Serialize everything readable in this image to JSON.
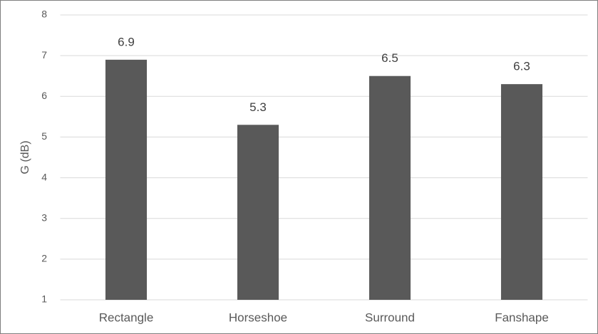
{
  "chart_data": {
    "type": "bar",
    "y_label": "G (dB)",
    "categories": [
      "Rectangle",
      "Horseshoe",
      "Surround",
      "Fanshape"
    ],
    "values": [
      6.9,
      5.3,
      6.5,
      6.3
    ],
    "color": "#595959",
    "ylim": [
      1,
      8
    ],
    "yticks": [
      1,
      2,
      3,
      4,
      5,
      6,
      7,
      8
    ],
    "grid": true
  }
}
